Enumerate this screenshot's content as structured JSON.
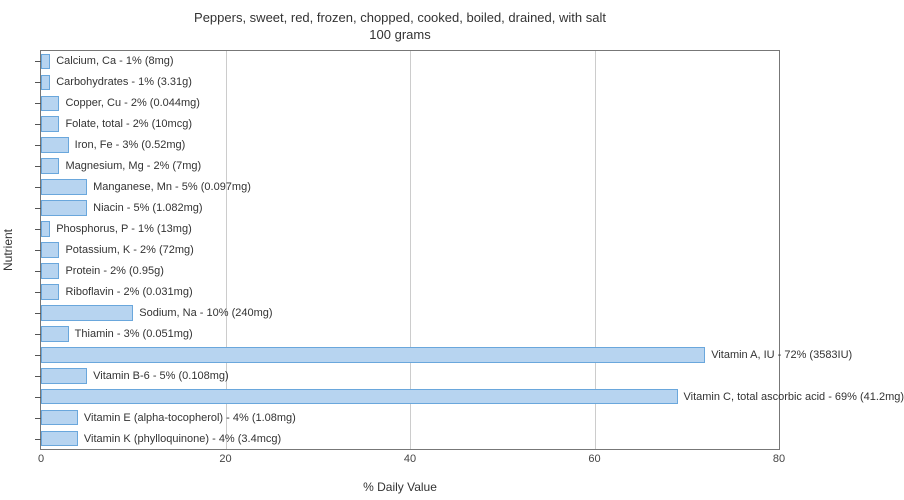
{
  "title_line1": "Peppers, sweet, red, frozen, chopped, cooked, boiled, drained, with salt",
  "title_line2": "100 grams",
  "yaxis_label": "Nutrient",
  "xaxis_label": "% Daily Value",
  "chart": {
    "type": "bar-horizontal",
    "xlim": [
      0,
      80
    ],
    "xticks": [
      0,
      20,
      40,
      60,
      80
    ],
    "bar_fill": "#b7d4f0",
    "bar_stroke": "#6aa7dc",
    "grid_color": "#cccccc",
    "axis_color": "#777777",
    "background_color": "#ffffff",
    "label_fontsize": 11,
    "title_fontsize": 13,
    "bar_gap_ratio": 0.25,
    "items": [
      {
        "label": "Calcium, Ca - 1% (8mg)",
        "value": 1
      },
      {
        "label": "Carbohydrates - 1% (3.31g)",
        "value": 1
      },
      {
        "label": "Copper, Cu - 2% (0.044mg)",
        "value": 2
      },
      {
        "label": "Folate, total - 2% (10mcg)",
        "value": 2
      },
      {
        "label": "Iron, Fe - 3% (0.52mg)",
        "value": 3
      },
      {
        "label": "Magnesium, Mg - 2% (7mg)",
        "value": 2
      },
      {
        "label": "Manganese, Mn - 5% (0.097mg)",
        "value": 5
      },
      {
        "label": "Niacin - 5% (1.082mg)",
        "value": 5
      },
      {
        "label": "Phosphorus, P - 1% (13mg)",
        "value": 1
      },
      {
        "label": "Potassium, K - 2% (72mg)",
        "value": 2
      },
      {
        "label": "Protein - 2% (0.95g)",
        "value": 2
      },
      {
        "label": "Riboflavin - 2% (0.031mg)",
        "value": 2
      },
      {
        "label": "Sodium, Na - 10% (240mg)",
        "value": 10
      },
      {
        "label": "Thiamin - 3% (0.051mg)",
        "value": 3
      },
      {
        "label": "Vitamin A, IU - 72% (3583IU)",
        "value": 72
      },
      {
        "label": "Vitamin B-6 - 5% (0.108mg)",
        "value": 5
      },
      {
        "label": "Vitamin C, total ascorbic acid - 69% (41.2mg)",
        "value": 69
      },
      {
        "label": "Vitamin E (alpha-tocopherol) - 4% (1.08mg)",
        "value": 4
      },
      {
        "label": "Vitamin K (phylloquinone) - 4% (3.4mcg)",
        "value": 4
      }
    ]
  }
}
